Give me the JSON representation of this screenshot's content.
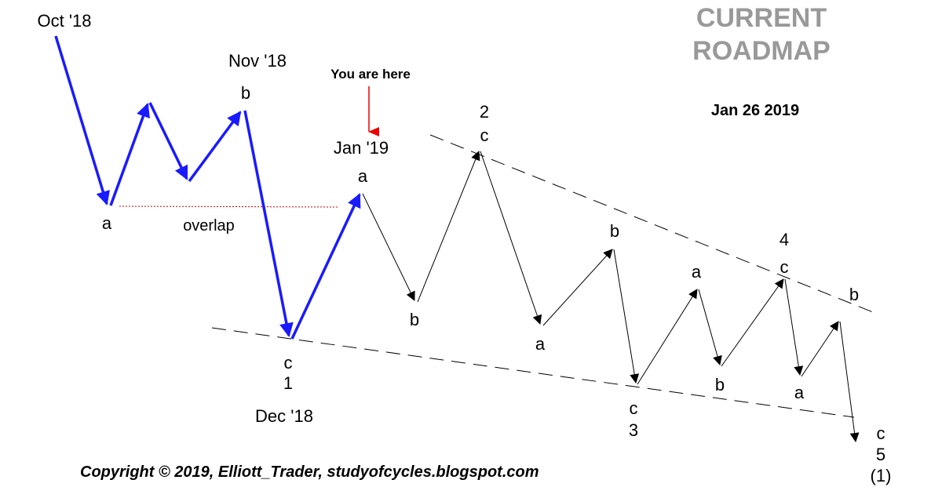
{
  "title": {
    "line1": "CURRENT",
    "line2": "ROADMAP"
  },
  "date": "Jan 26 2019",
  "you_are_here": "You are here",
  "copyright": "Copyright © 2019, Elliott_Trader, studyofcycles.blogspot.com",
  "overlap_label": "overlap",
  "time_labels": {
    "oct18": "Oct '18",
    "nov18": "Nov '18",
    "jan19": "Jan '19",
    "dec18": "Dec '18"
  },
  "wave_labels": {
    "a1": "a",
    "b1": "b",
    "c1": "c",
    "n1": "1",
    "a2": "a",
    "b2": "b",
    "c2": "c",
    "n2": "2",
    "a3": "a",
    "b3": "b",
    "c3": "c",
    "n3": "3",
    "a4": "a",
    "b4": "b",
    "c4": "c",
    "n4": "4",
    "a5": "a",
    "b5": "b",
    "c5": "c",
    "n5": "5",
    "deg1": "(1)"
  },
  "colors": {
    "past_path": "#1a1aff",
    "projected_path": "#000000",
    "pointer": "#ee0000",
    "overlap_line": "#cc0000",
    "title": "#999999"
  }
}
